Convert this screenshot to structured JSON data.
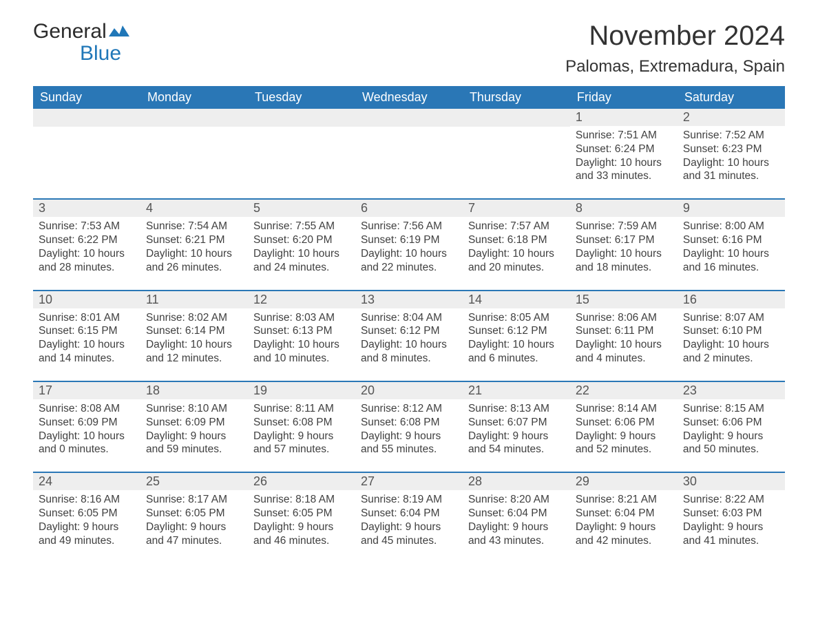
{
  "brand": {
    "general": "General",
    "blue": "Blue",
    "flag_color": "#2077b8"
  },
  "title": "November 2024",
  "location": "Palomas, Extremadura, Spain",
  "colors": {
    "header_bg": "#2a77b6",
    "header_text": "#ffffff",
    "daynum_bg": "#eeeeee",
    "body_text": "#404040",
    "rule": "#2a77b6"
  },
  "weekdays": [
    "Sunday",
    "Monday",
    "Tuesday",
    "Wednesday",
    "Thursday",
    "Friday",
    "Saturday"
  ],
  "weeks": [
    [
      null,
      null,
      null,
      null,
      null,
      {
        "n": "1",
        "sr": "Sunrise: 7:51 AM",
        "ss": "Sunset: 6:24 PM",
        "d1": "Daylight: 10 hours",
        "d2": "and 33 minutes."
      },
      {
        "n": "2",
        "sr": "Sunrise: 7:52 AM",
        "ss": "Sunset: 6:23 PM",
        "d1": "Daylight: 10 hours",
        "d2": "and 31 minutes."
      }
    ],
    [
      {
        "n": "3",
        "sr": "Sunrise: 7:53 AM",
        "ss": "Sunset: 6:22 PM",
        "d1": "Daylight: 10 hours",
        "d2": "and 28 minutes."
      },
      {
        "n": "4",
        "sr": "Sunrise: 7:54 AM",
        "ss": "Sunset: 6:21 PM",
        "d1": "Daylight: 10 hours",
        "d2": "and 26 minutes."
      },
      {
        "n": "5",
        "sr": "Sunrise: 7:55 AM",
        "ss": "Sunset: 6:20 PM",
        "d1": "Daylight: 10 hours",
        "d2": "and 24 minutes."
      },
      {
        "n": "6",
        "sr": "Sunrise: 7:56 AM",
        "ss": "Sunset: 6:19 PM",
        "d1": "Daylight: 10 hours",
        "d2": "and 22 minutes."
      },
      {
        "n": "7",
        "sr": "Sunrise: 7:57 AM",
        "ss": "Sunset: 6:18 PM",
        "d1": "Daylight: 10 hours",
        "d2": "and 20 minutes."
      },
      {
        "n": "8",
        "sr": "Sunrise: 7:59 AM",
        "ss": "Sunset: 6:17 PM",
        "d1": "Daylight: 10 hours",
        "d2": "and 18 minutes."
      },
      {
        "n": "9",
        "sr": "Sunrise: 8:00 AM",
        "ss": "Sunset: 6:16 PM",
        "d1": "Daylight: 10 hours",
        "d2": "and 16 minutes."
      }
    ],
    [
      {
        "n": "10",
        "sr": "Sunrise: 8:01 AM",
        "ss": "Sunset: 6:15 PM",
        "d1": "Daylight: 10 hours",
        "d2": "and 14 minutes."
      },
      {
        "n": "11",
        "sr": "Sunrise: 8:02 AM",
        "ss": "Sunset: 6:14 PM",
        "d1": "Daylight: 10 hours",
        "d2": "and 12 minutes."
      },
      {
        "n": "12",
        "sr": "Sunrise: 8:03 AM",
        "ss": "Sunset: 6:13 PM",
        "d1": "Daylight: 10 hours",
        "d2": "and 10 minutes."
      },
      {
        "n": "13",
        "sr": "Sunrise: 8:04 AM",
        "ss": "Sunset: 6:12 PM",
        "d1": "Daylight: 10 hours",
        "d2": "and 8 minutes."
      },
      {
        "n": "14",
        "sr": "Sunrise: 8:05 AM",
        "ss": "Sunset: 6:12 PM",
        "d1": "Daylight: 10 hours",
        "d2": "and 6 minutes."
      },
      {
        "n": "15",
        "sr": "Sunrise: 8:06 AM",
        "ss": "Sunset: 6:11 PM",
        "d1": "Daylight: 10 hours",
        "d2": "and 4 minutes."
      },
      {
        "n": "16",
        "sr": "Sunrise: 8:07 AM",
        "ss": "Sunset: 6:10 PM",
        "d1": "Daylight: 10 hours",
        "d2": "and 2 minutes."
      }
    ],
    [
      {
        "n": "17",
        "sr": "Sunrise: 8:08 AM",
        "ss": "Sunset: 6:09 PM",
        "d1": "Daylight: 10 hours",
        "d2": "and 0 minutes."
      },
      {
        "n": "18",
        "sr": "Sunrise: 8:10 AM",
        "ss": "Sunset: 6:09 PM",
        "d1": "Daylight: 9 hours",
        "d2": "and 59 minutes."
      },
      {
        "n": "19",
        "sr": "Sunrise: 8:11 AM",
        "ss": "Sunset: 6:08 PM",
        "d1": "Daylight: 9 hours",
        "d2": "and 57 minutes."
      },
      {
        "n": "20",
        "sr": "Sunrise: 8:12 AM",
        "ss": "Sunset: 6:08 PM",
        "d1": "Daylight: 9 hours",
        "d2": "and 55 minutes."
      },
      {
        "n": "21",
        "sr": "Sunrise: 8:13 AM",
        "ss": "Sunset: 6:07 PM",
        "d1": "Daylight: 9 hours",
        "d2": "and 54 minutes."
      },
      {
        "n": "22",
        "sr": "Sunrise: 8:14 AM",
        "ss": "Sunset: 6:06 PM",
        "d1": "Daylight: 9 hours",
        "d2": "and 52 minutes."
      },
      {
        "n": "23",
        "sr": "Sunrise: 8:15 AM",
        "ss": "Sunset: 6:06 PM",
        "d1": "Daylight: 9 hours",
        "d2": "and 50 minutes."
      }
    ],
    [
      {
        "n": "24",
        "sr": "Sunrise: 8:16 AM",
        "ss": "Sunset: 6:05 PM",
        "d1": "Daylight: 9 hours",
        "d2": "and 49 minutes."
      },
      {
        "n": "25",
        "sr": "Sunrise: 8:17 AM",
        "ss": "Sunset: 6:05 PM",
        "d1": "Daylight: 9 hours",
        "d2": "and 47 minutes."
      },
      {
        "n": "26",
        "sr": "Sunrise: 8:18 AM",
        "ss": "Sunset: 6:05 PM",
        "d1": "Daylight: 9 hours",
        "d2": "and 46 minutes."
      },
      {
        "n": "27",
        "sr": "Sunrise: 8:19 AM",
        "ss": "Sunset: 6:04 PM",
        "d1": "Daylight: 9 hours",
        "d2": "and 45 minutes."
      },
      {
        "n": "28",
        "sr": "Sunrise: 8:20 AM",
        "ss": "Sunset: 6:04 PM",
        "d1": "Daylight: 9 hours",
        "d2": "and 43 minutes."
      },
      {
        "n": "29",
        "sr": "Sunrise: 8:21 AM",
        "ss": "Sunset: 6:04 PM",
        "d1": "Daylight: 9 hours",
        "d2": "and 42 minutes."
      },
      {
        "n": "30",
        "sr": "Sunrise: 8:22 AM",
        "ss": "Sunset: 6:03 PM",
        "d1": "Daylight: 9 hours",
        "d2": "and 41 minutes."
      }
    ]
  ]
}
